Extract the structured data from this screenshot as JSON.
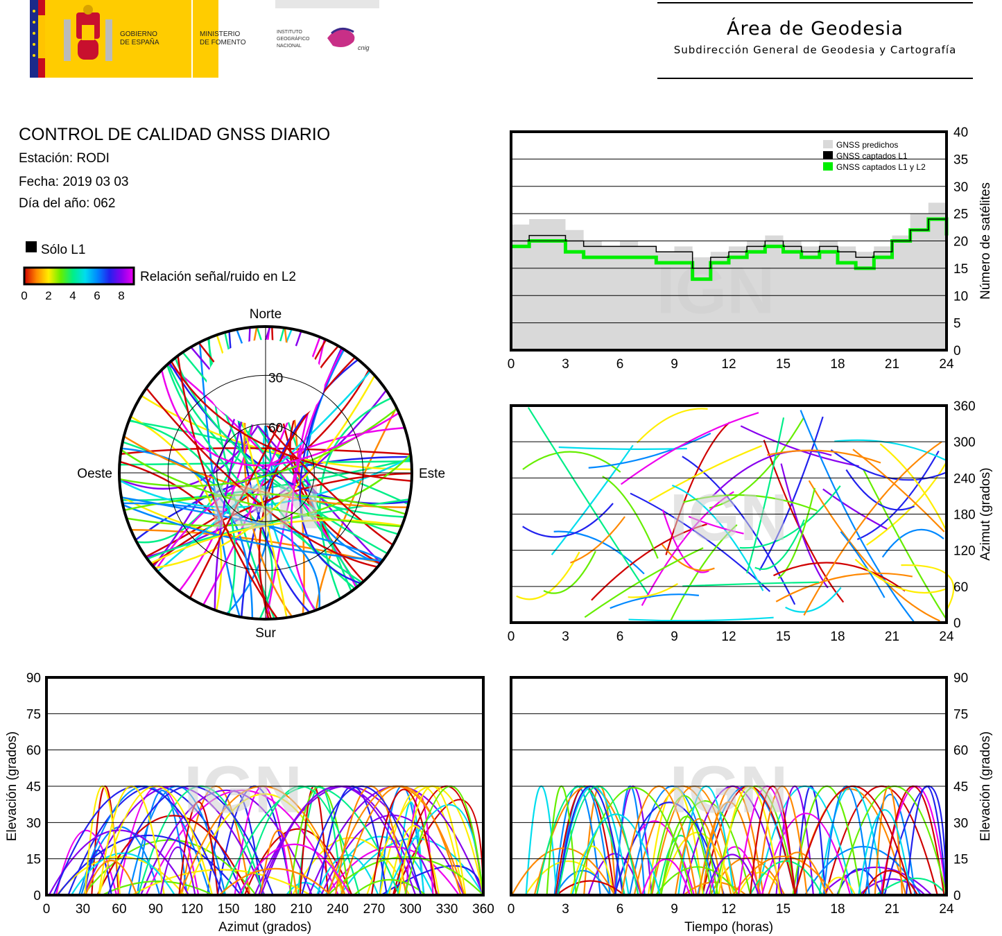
{
  "header": {
    "logo_gov_line1": "GOBIERNO",
    "logo_gov_line2": "DE ESPAÑA",
    "logo_min_line1": "MINISTERIO",
    "logo_min_line2": "DE FOMENTO",
    "logo_ign_line1": "INSTITUTO",
    "logo_ign_line2": "GEOGRÁFICO",
    "logo_ign_line3": "NACIONAL",
    "logo_cnig": "cnig",
    "area_title": "Área de Geodesia",
    "area_subtitle": "Subdirección General de Geodesia y Cartografía"
  },
  "report": {
    "title": "CONTROL DE CALIDAD GNSS DIARIO",
    "station": "Estación: RODI",
    "date": "Fecha: 2019 03 03",
    "doy": "Día del año: 062"
  },
  "legend": {
    "l1_only": "Sólo L1",
    "snr_label": "Relación señal/ruido en L2",
    "snr_ticks": [
      "0",
      "2",
      "4",
      "6",
      "8"
    ],
    "snr_colors": [
      "#d00000",
      "#ff8800",
      "#ffee00",
      "#66ee00",
      "#00ee88",
      "#00ddee",
      "#0088ff",
      "#2222ee",
      "#8800ee",
      "#ee00ee"
    ]
  },
  "watermark": "IGN",
  "colors": {
    "predicted": "#d9d9d9",
    "l1": "#000000",
    "l1l2": "#00ee00"
  },
  "chart_data": [
    {
      "type": "area",
      "id": "satellite-count",
      "xlabel": "",
      "ylabel": "Número de satélites",
      "xlim": [
        0,
        24
      ],
      "ylim": [
        0,
        40
      ],
      "xticks": [
        0,
        3,
        6,
        9,
        12,
        15,
        18,
        21,
        24
      ],
      "yticks": [
        0,
        5,
        10,
        15,
        20,
        25,
        30,
        35,
        40
      ],
      "grid": true,
      "legend_position": "top-right",
      "series": [
        {
          "name": "GNSS predichos",
          "x": [
            0,
            1,
            2,
            3,
            4,
            5,
            6,
            7,
            8,
            9,
            10,
            11,
            12,
            13,
            14,
            15,
            16,
            17,
            18,
            19,
            20,
            21,
            22,
            23,
            24
          ],
          "values": [
            23,
            24,
            24,
            22,
            20,
            19,
            20,
            19,
            18,
            19,
            17,
            18,
            19,
            20,
            21,
            20,
            19,
            20,
            19,
            18,
            19,
            21,
            25,
            27,
            24
          ]
        },
        {
          "name": "GNSS captados L1",
          "x": [
            0,
            1,
            2,
            3,
            4,
            5,
            6,
            7,
            8,
            9,
            10,
            11,
            12,
            13,
            14,
            15,
            16,
            17,
            18,
            19,
            20,
            21,
            22,
            23,
            24
          ],
          "values": [
            20,
            21,
            21,
            20,
            19,
            19,
            19,
            19,
            18,
            18,
            15,
            17,
            18,
            19,
            20,
            19,
            18,
            19,
            18,
            17,
            18,
            20,
            22,
            24,
            21
          ]
        },
        {
          "name": "GNSS captados L1 y L2",
          "x": [
            0,
            1,
            2,
            3,
            4,
            5,
            6,
            7,
            8,
            9,
            10,
            11,
            12,
            13,
            14,
            15,
            16,
            17,
            18,
            19,
            20,
            21,
            22,
            23,
            24
          ],
          "values": [
            19,
            20,
            20,
            18,
            17,
            17,
            17,
            17,
            16,
            16,
            13,
            16,
            17,
            18,
            19,
            18,
            17,
            18,
            16,
            15,
            17,
            20,
            22,
            24,
            21
          ]
        }
      ]
    },
    {
      "type": "scatter",
      "id": "skyplot",
      "subtype": "polar",
      "direction_labels": {
        "north": "Norte",
        "south": "Sur",
        "east": "Este",
        "west": "Oeste"
      },
      "ring_labels": [
        "30",
        "60"
      ],
      "rings_elevation": [
        30,
        60
      ]
    },
    {
      "type": "scatter",
      "id": "azimuth-vs-time",
      "xlabel": "",
      "ylabel": "Azimut (grados)",
      "xlim": [
        0,
        24
      ],
      "ylim": [
        0,
        360
      ],
      "xticks": [
        0,
        3,
        6,
        9,
        12,
        15,
        18,
        21,
        24
      ],
      "yticks": [
        0,
        60,
        120,
        180,
        240,
        300,
        360
      ],
      "grid": true
    },
    {
      "type": "scatter",
      "id": "elevation-vs-azimuth",
      "xlabel": "Azimut (grados)",
      "ylabel": "Elevación (grados)",
      "xlim": [
        0,
        360
      ],
      "ylim": [
        0,
        90
      ],
      "xticks": [
        0,
        30,
        60,
        90,
        120,
        150,
        180,
        210,
        240,
        270,
        300,
        330,
        360
      ],
      "yticks": [
        0,
        15,
        30,
        45,
        60,
        75,
        90
      ],
      "grid": true
    },
    {
      "type": "scatter",
      "id": "elevation-vs-time",
      "xlabel": "Tiempo (horas)",
      "ylabel": "Elevación (grados)",
      "xlim": [
        0,
        24
      ],
      "ylim": [
        0,
        90
      ],
      "xticks": [
        0,
        3,
        6,
        9,
        12,
        15,
        18,
        21,
        24
      ],
      "yticks": [
        0,
        15,
        30,
        45,
        60,
        75,
        90
      ],
      "grid": true
    }
  ]
}
